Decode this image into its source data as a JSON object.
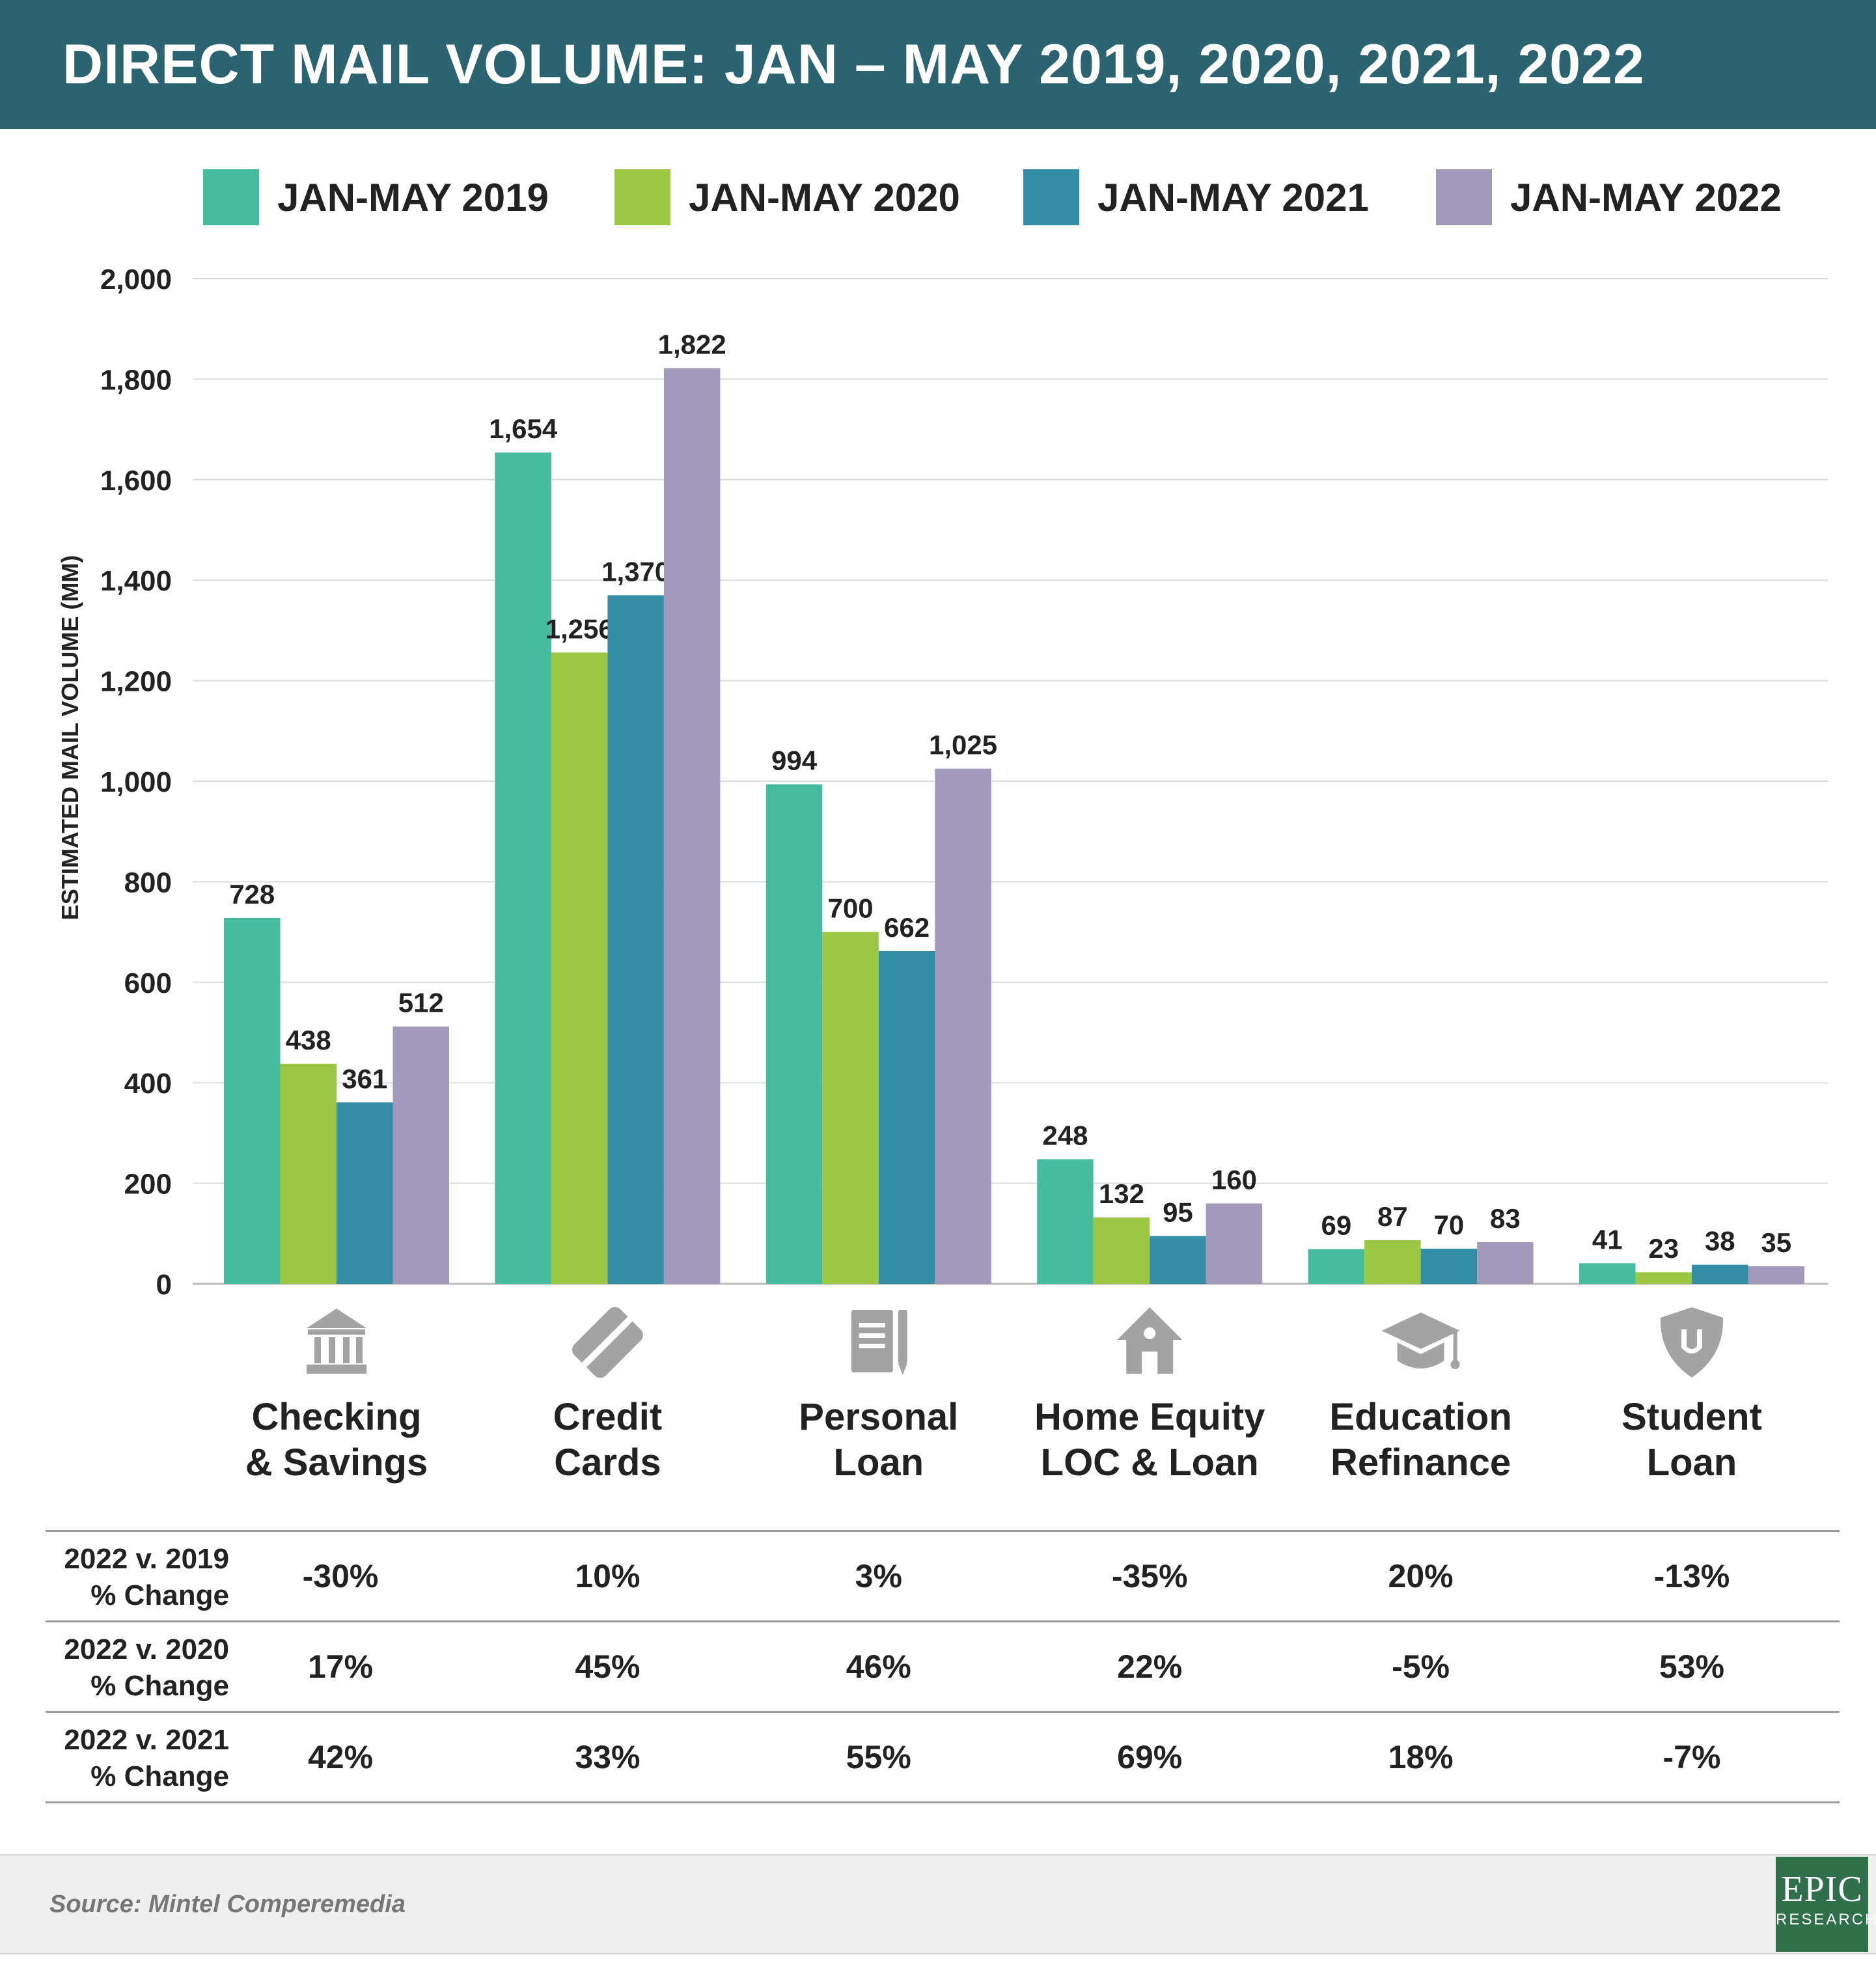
{
  "header": {
    "title": "DIRECT MAIL VOLUME: JAN – MAY 2019, 2020, 2021, 2022"
  },
  "legend": [
    {
      "label": "JAN-MAY 2019",
      "color": "#46bc9f"
    },
    {
      "label": "JAN-MAY 2020",
      "color": "#9cc743"
    },
    {
      "label": "JAN-MAY 2021",
      "color": "#338ea6"
    },
    {
      "label": "JAN-MAY 2022",
      "color": "#a399bb"
    }
  ],
  "chart_data": {
    "type": "bar",
    "ylabel": "ESTIMATED MAIL VOLUME (MM)",
    "ylim": [
      0,
      2000
    ],
    "yticks": [
      "0",
      "200",
      "400",
      "600",
      "800",
      "1,000",
      "1,200",
      "1,400",
      "1,600",
      "1,800",
      "2,000"
    ],
    "grid": true,
    "legend_position": "top",
    "categories": [
      {
        "line1": "Checking",
        "line2": "& Savings",
        "icon": "bank-icon"
      },
      {
        "line1": "Credit",
        "line2": "Cards",
        "icon": "credit-card-icon"
      },
      {
        "line1": "Personal",
        "line2": "Loan",
        "icon": "document-pen-icon"
      },
      {
        "line1": "Home Equity",
        "line2": "LOC & Loan",
        "icon": "house-icon"
      },
      {
        "line1": "Education",
        "line2": "Refinance",
        "icon": "graduation-cap-icon"
      },
      {
        "line1": "Student",
        "line2": "Loan",
        "icon": "shield-icon"
      }
    ],
    "series": [
      {
        "name": "JAN-MAY 2019",
        "values": [
          728,
          1654,
          994,
          248,
          69,
          41
        ],
        "labels": [
          "728",
          "1,654",
          "994",
          "248",
          "69",
          "41"
        ]
      },
      {
        "name": "JAN-MAY 2020",
        "values": [
          438,
          1256,
          700,
          132,
          87,
          23
        ],
        "labels": [
          "438",
          "1,256",
          "700",
          "132",
          "87",
          "23"
        ]
      },
      {
        "name": "JAN-MAY 2021",
        "values": [
          361,
          1370,
          662,
          95,
          70,
          38
        ],
        "labels": [
          "361",
          "1,370",
          "662",
          "95",
          "70",
          "38"
        ]
      },
      {
        "name": "JAN-MAY 2022",
        "values": [
          512,
          1822,
          1025,
          160,
          83,
          35
        ],
        "labels": [
          "512",
          "1,822",
          "1,025",
          "160",
          "83",
          "35"
        ]
      }
    ]
  },
  "table": {
    "rows": [
      {
        "label1": "2022 v. 2019",
        "label2": "% Change",
        "cells": [
          "-30%",
          "10%",
          "3%",
          "-35%",
          "20%",
          "-13%"
        ]
      },
      {
        "label1": "2022 v. 2020",
        "label2": "% Change",
        "cells": [
          "17%",
          "45%",
          "46%",
          "22%",
          "-5%",
          "53%"
        ]
      },
      {
        "label1": "2022 v. 2021",
        "label2": "% Change",
        "cells": [
          "42%",
          "33%",
          "55%",
          "69%",
          "18%",
          "-7%"
        ]
      }
    ]
  },
  "footer": {
    "source": "Source: Mintel Comperemedia"
  },
  "logo": {
    "main": "EPIC",
    "sub": "RESEARCH"
  },
  "colors": {
    "header_bg": "#2b6470",
    "icon_gray": "#a3a3a3",
    "grid": "#dcdcdc"
  }
}
